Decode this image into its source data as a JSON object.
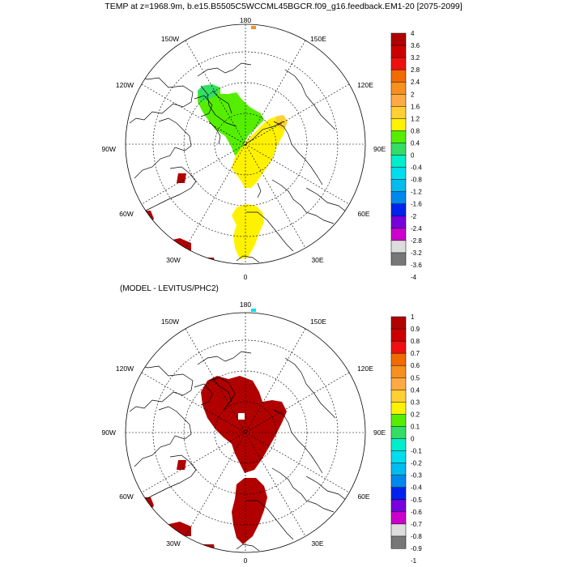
{
  "title": "TEMP at z=1968.9m, b.e15.B5505C5WCCML45BGCR.f09_g16.feedback.EM1-20 [2075-2099]",
  "subtitle": "(MODEL - LEVITUS/PHC2)",
  "map_labels": {
    "top": "180",
    "bottom": "0",
    "left": "90W",
    "right": "90E",
    "ul1": "150W",
    "ul2": "120W",
    "ll1": "60W",
    "ll2": "30W",
    "ur1": "150E",
    "ur2": "120E",
    "lr1": "60E",
    "lr2": "30E"
  },
  "colorbar_top": {
    "labels": [
      "4",
      "3.6",
      "3.2",
      "2.8",
      "2.4",
      "2",
      "1.6",
      "1.2",
      "0.8",
      "0.4",
      "0",
      "-0.4",
      "-0.8",
      "-1.2",
      "-1.6",
      "-2",
      "-2.4",
      "-2.8",
      "-3.2",
      "-3.6",
      "-4"
    ]
  },
  "colorbar_bottom": {
    "labels": [
      "1",
      "0.9",
      "0.8",
      "0.7",
      "0.6",
      "0.5",
      "0.4",
      "0.3",
      "0.2",
      "0.1",
      "0",
      "-0.1",
      "-0.2",
      "-0.3",
      "-0.4",
      "-0.5",
      "-0.6",
      "-0.7",
      "-0.8",
      "-0.9",
      "-1"
    ]
  },
  "colors": {
    "palette": [
      "#b00000",
      "#cc0000",
      "#ee1010",
      "#f26a00",
      "#f7901e",
      "#ffaa44",
      "#ffcf33",
      "#fff200",
      "#55ee00",
      "#33dd66",
      "#00eecc",
      "#00ddee",
      "#00bbee",
      "#0088ee",
      "#0022ee",
      "#7700dd",
      "#cc00cc",
      "#dddddd",
      "#777777"
    ],
    "red": "#b00000",
    "green": "#55ee00",
    "yellow": "#fff200",
    "orange": "#ffcf33",
    "cyan": "#00ddee"
  }
}
